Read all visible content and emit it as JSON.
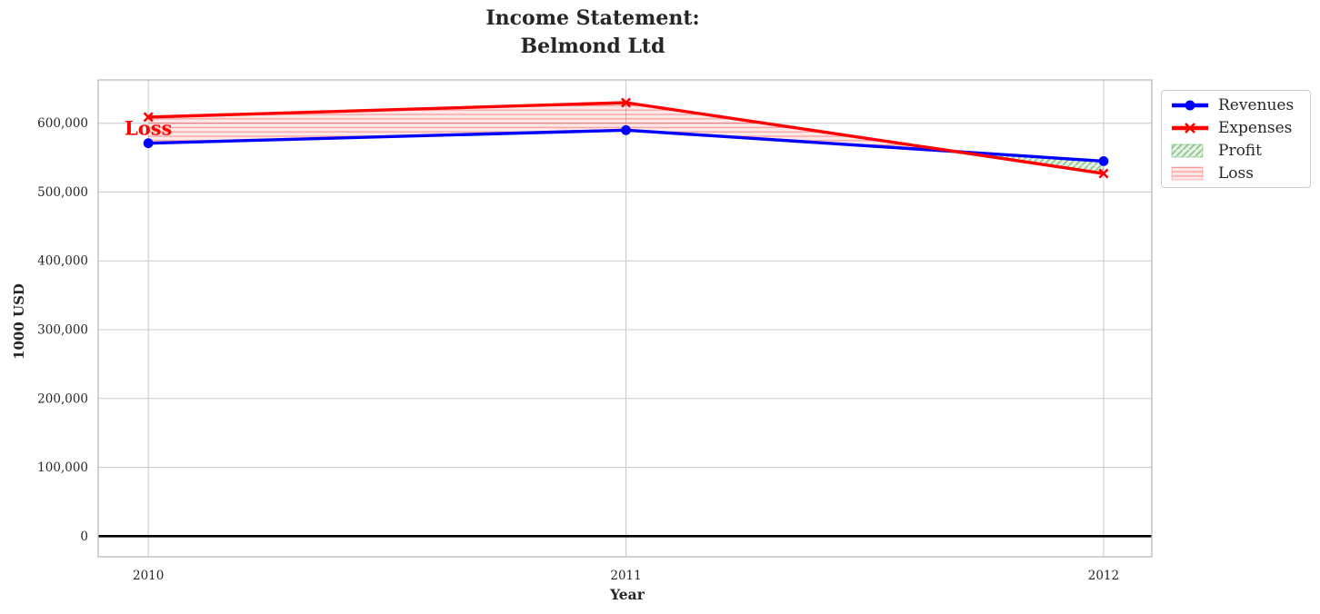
{
  "figure": {
    "title_line1": "Income Statement:",
    "title_line2": "Belmond Ltd"
  },
  "chart_data": {
    "type": "line",
    "title": "Income Statement: Belmond Ltd",
    "xlabel": "Year",
    "ylabel": "1000 USD",
    "x": [
      2010,
      2011,
      2012
    ],
    "xtick_labels": [
      "2010",
      "2011",
      "2012"
    ],
    "yticks": [
      0,
      100000,
      200000,
      300000,
      400000,
      500000,
      600000
    ],
    "ytick_labels": [
      "0",
      "100,000",
      "200,000",
      "300,000",
      "400,000",
      "500,000",
      "600,000"
    ],
    "xlim": [
      2009.895,
      2012.101
    ],
    "ylim": [
      -30000,
      663000
    ],
    "grid": true,
    "grid_color": "#cccccc",
    "zero_line": true,
    "zero_line_color": "#000000",
    "series": [
      {
        "name": "Revenues",
        "color": "#0000ff",
        "marker": "circle",
        "values": [
          571000,
          590000,
          545000
        ]
      },
      {
        "name": "Expenses",
        "color": "#ff0000",
        "marker": "x",
        "values": [
          609000,
          630000,
          527000
        ]
      }
    ],
    "regions": [
      {
        "name": "Profit",
        "color": "#008000",
        "hatch": "diagonal"
      },
      {
        "name": "Loss",
        "color": "#ff0000",
        "hatch": "horizontal"
      }
    ],
    "legend": [
      "Revenues",
      "Expenses",
      "Profit",
      "Loss"
    ],
    "legend_position": "upper-right-outside",
    "annotation": {
      "text": "Loss",
      "x": 2010,
      "y": 593000
    }
  }
}
